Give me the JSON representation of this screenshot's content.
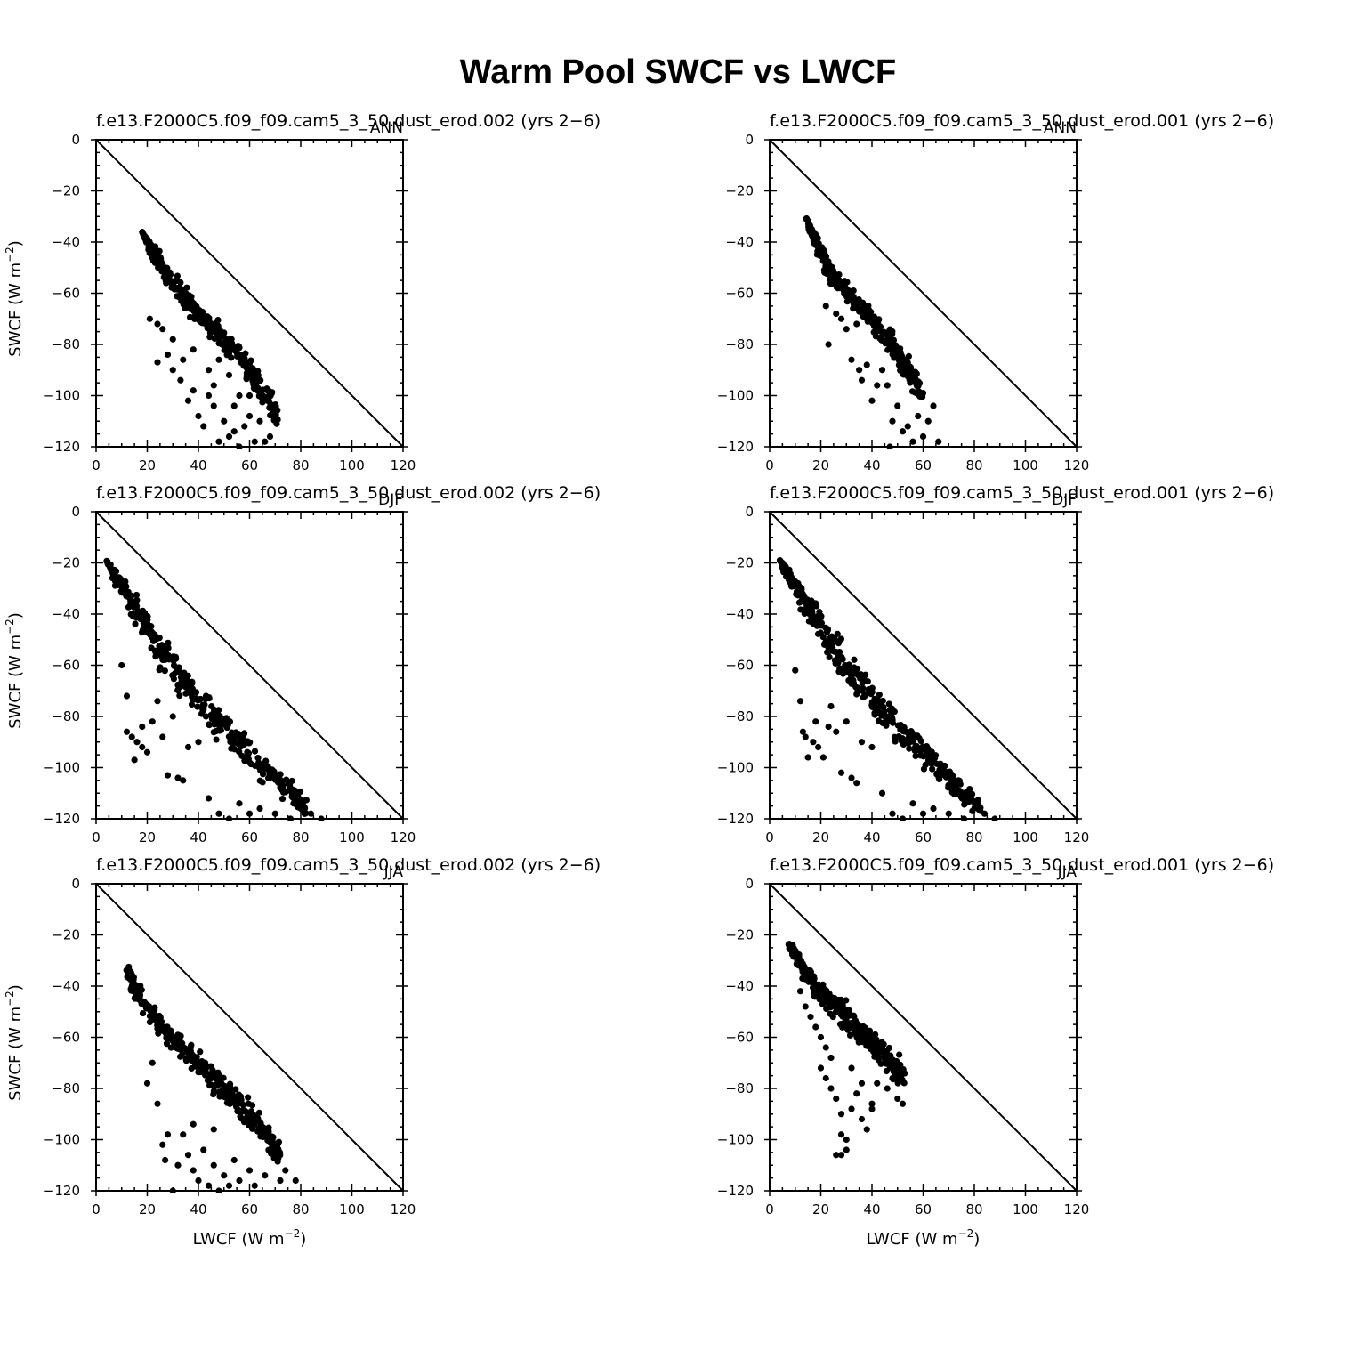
{
  "title": "Warm Pool SWCF vs LWCF",
  "axis_labels": {
    "x_base": "LWCF  (W m",
    "y_base": "SWCF  (W m",
    "exponent": "−2",
    "close": ")"
  },
  "colors": {
    "marker": "#000000",
    "axis": "#000000",
    "background": "#ffffff"
  },
  "chart_data": [
    {
      "type": "scatter",
      "season": "ANN",
      "title": "f.e13.F2000C5.f09_f09.cam5_3_50.dust_erod.002  (yrs 2−6)",
      "xlabel": "LWCF (W m−2)",
      "ylabel": "SWCF (W m−2)",
      "xlim": [
        0,
        120
      ],
      "ylim": [
        -120,
        0
      ],
      "xticks": [
        "0",
        "20",
        "40",
        "60",
        "80",
        "100",
        "120"
      ],
      "yticks": [
        "0",
        "−20",
        "−40",
        "−60",
        "−80",
        "−100",
        "−120"
      ],
      "reference_line": "SWCF = −LWCF",
      "cloud": [
        [
          18,
          -36,
          0
        ],
        [
          22,
          -44,
          3
        ],
        [
          28,
          -53,
          4
        ],
        [
          35,
          -62,
          4
        ],
        [
          42,
          -70,
          4
        ],
        [
          50,
          -78,
          5
        ],
        [
          58,
          -87,
          5
        ],
        [
          64,
          -96,
          5
        ],
        [
          70,
          -108,
          5
        ]
      ],
      "scatter": [
        [
          21,
          -70
        ],
        [
          26,
          -74
        ],
        [
          24,
          -87
        ],
        [
          30,
          -78
        ],
        [
          33,
          -94
        ],
        [
          36,
          -102
        ],
        [
          38,
          -98
        ],
        [
          40,
          -108
        ],
        [
          42,
          -112
        ],
        [
          44,
          -100
        ],
        [
          46,
          -104
        ],
        [
          48,
          -118
        ],
        [
          50,
          -110
        ],
        [
          52,
          -116
        ],
        [
          54,
          -114
        ],
        [
          56,
          -120
        ],
        [
          58,
          -112
        ],
        [
          60,
          -108
        ],
        [
          62,
          -118
        ],
        [
          66,
          -118
        ],
        [
          38,
          -82
        ],
        [
          44,
          -90
        ],
        [
          46,
          -96
        ],
        [
          52,
          -92
        ],
        [
          56,
          -100
        ],
        [
          34,
          -86
        ],
        [
          28,
          -84
        ],
        [
          48,
          -86
        ],
        [
          54,
          -104
        ],
        [
          60,
          -100
        ],
        [
          64,
          -110
        ],
        [
          68,
          -116
        ],
        [
          24,
          -72
        ],
        [
          30,
          -90
        ]
      ]
    },
    {
      "type": "scatter",
      "season": "ANN",
      "title": "f.e13.F2000C5.f09_f09.cam5_3_50.dust_erod.001  (yrs 2−6)",
      "xlabel": "LWCF (W m−2)",
      "ylabel": "SWCF (W m−2)",
      "xlim": [
        0,
        120
      ],
      "ylim": [
        -120,
        0
      ],
      "xticks": [
        "0",
        "20",
        "40",
        "60",
        "80",
        "100",
        "120"
      ],
      "yticks": [
        "0",
        "−20",
        "−40",
        "−60",
        "−80",
        "−100",
        "−120"
      ],
      "reference_line": "SWCF = −LWCF",
      "cloud": [
        [
          14,
          -30,
          0
        ],
        [
          18,
          -40,
          3
        ],
        [
          24,
          -52,
          4
        ],
        [
          32,
          -62,
          4
        ],
        [
          40,
          -70,
          4
        ],
        [
          48,
          -80,
          4
        ],
        [
          54,
          -90,
          4
        ],
        [
          60,
          -100,
          4
        ]
      ],
      "scatter": [
        [
          22,
          -65
        ],
        [
          26,
          -68
        ],
        [
          23,
          -80
        ],
        [
          30,
          -74
        ],
        [
          32,
          -86
        ],
        [
          35,
          -90
        ],
        [
          36,
          -94
        ],
        [
          38,
          -88
        ],
        [
          40,
          -102
        ],
        [
          44,
          -90
        ],
        [
          46,
          -96
        ],
        [
          48,
          -110
        ],
        [
          50,
          -104
        ],
        [
          52,
          -114
        ],
        [
          54,
          -112
        ],
        [
          56,
          -118
        ],
        [
          58,
          -108
        ],
        [
          60,
          -116
        ],
        [
          62,
          -110
        ],
        [
          66,
          -118
        ],
        [
          64,
          -104
        ],
        [
          34,
          -72
        ],
        [
          28,
          -70
        ],
        [
          42,
          -96
        ],
        [
          47,
          -120
        ]
      ]
    },
    {
      "type": "scatter",
      "season": "DJF",
      "title": "f.e13.F2000C5.f09_f09.cam5_3_50.dust_erod.002  (yrs 2−6)",
      "xlabel": "LWCF (W m−2)",
      "ylabel": "SWCF (W m−2)",
      "xlim": [
        0,
        120
      ],
      "ylim": [
        -120,
        0
      ],
      "xticks": [
        "0",
        "20",
        "40",
        "60",
        "80",
        "100",
        "120"
      ],
      "yticks": [
        "0",
        "−20",
        "−40",
        "−60",
        "−80",
        "−100",
        "−120"
      ],
      "reference_line": "SWCF = −LWCF",
      "cloud": [
        [
          4,
          -19,
          0
        ],
        [
          8,
          -26,
          3
        ],
        [
          16,
          -38,
          6
        ],
        [
          24,
          -52,
          7
        ],
        [
          34,
          -66,
          6
        ],
        [
          44,
          -78,
          6
        ],
        [
          54,
          -88,
          6
        ],
        [
          64,
          -98,
          5
        ],
        [
          74,
          -108,
          5
        ],
        [
          82,
          -116,
          4
        ]
      ],
      "scatter": [
        [
          10,
          -60
        ],
        [
          12,
          -72
        ],
        [
          14,
          -88
        ],
        [
          15,
          -97
        ],
        [
          16,
          -90
        ],
        [
          18,
          -92
        ],
        [
          20,
          -94
        ],
        [
          22,
          -82
        ],
        [
          26,
          -88
        ],
        [
          28,
          -103
        ],
        [
          32,
          -104
        ],
        [
          34,
          -105
        ],
        [
          30,
          -80
        ],
        [
          36,
          -92
        ],
        [
          40,
          -90
        ],
        [
          44,
          -112
        ],
        [
          48,
          -118
        ],
        [
          52,
          -120
        ],
        [
          56,
          -114
        ],
        [
          60,
          -118
        ],
        [
          64,
          -116
        ],
        [
          70,
          -118
        ],
        [
          76,
          -120
        ],
        [
          84,
          -118
        ],
        [
          88,
          -120
        ],
        [
          12,
          -86
        ],
        [
          18,
          -84
        ],
        [
          24,
          -74
        ]
      ]
    },
    {
      "type": "scatter",
      "season": "DJF",
      "title": "f.e13.F2000C5.f09_f09.cam5_3_50.dust_erod.001  (yrs 2−6)",
      "xlabel": "LWCF (W m−2)",
      "ylabel": "SWCF (W m−2)",
      "xlim": [
        0,
        120
      ],
      "ylim": [
        -120,
        0
      ],
      "xticks": [
        "0",
        "20",
        "40",
        "60",
        "80",
        "100",
        "120"
      ],
      "yticks": [
        "0",
        "−20",
        "−40",
        "−60",
        "−80",
        "−100",
        "−120"
      ],
      "reference_line": "SWCF = −LWCF",
      "cloud": [
        [
          4,
          -19,
          0
        ],
        [
          8,
          -26,
          3
        ],
        [
          16,
          -38,
          6
        ],
        [
          24,
          -52,
          7
        ],
        [
          34,
          -66,
          6
        ],
        [
          44,
          -78,
          6
        ],
        [
          54,
          -88,
          6
        ],
        [
          64,
          -98,
          5
        ],
        [
          74,
          -108,
          5
        ],
        [
          82,
          -116,
          4
        ]
      ],
      "scatter": [
        [
          10,
          -62
        ],
        [
          12,
          -74
        ],
        [
          14,
          -88
        ],
        [
          15,
          -96
        ],
        [
          17,
          -90
        ],
        [
          19,
          -92
        ],
        [
          21,
          -96
        ],
        [
          23,
          -84
        ],
        [
          26,
          -86
        ],
        [
          28,
          -102
        ],
        [
          32,
          -104
        ],
        [
          34,
          -106
        ],
        [
          30,
          -82
        ],
        [
          36,
          -90
        ],
        [
          40,
          -92
        ],
        [
          44,
          -110
        ],
        [
          48,
          -118
        ],
        [
          52,
          -120
        ],
        [
          56,
          -114
        ],
        [
          60,
          -118
        ],
        [
          64,
          -116
        ],
        [
          70,
          -118
        ],
        [
          76,
          -120
        ],
        [
          84,
          -118
        ],
        [
          88,
          -120
        ],
        [
          13,
          -86
        ],
        [
          18,
          -82
        ],
        [
          24,
          -76
        ]
      ]
    },
    {
      "type": "scatter",
      "season": "JJA",
      "title": "f.e13.F2000C5.f09_f09.cam5_3_50.dust_erod.002  (yrs 2−6)",
      "xlabel": "LWCF (W m−2)",
      "ylabel": "SWCF (W m−2)",
      "xlim": [
        0,
        120
      ],
      "ylim": [
        -120,
        0
      ],
      "xticks": [
        "0",
        "20",
        "40",
        "60",
        "80",
        "100",
        "120"
      ],
      "yticks": [
        "0",
        "−20",
        "−40",
        "−60",
        "−80",
        "−100",
        "−120"
      ],
      "reference_line": "SWCF = −LWCF",
      "cloud": [
        [
          12,
          -34,
          3
        ],
        [
          18,
          -46,
          4
        ],
        [
          26,
          -56,
          4
        ],
        [
          34,
          -64,
          5
        ],
        [
          42,
          -72,
          5
        ],
        [
          50,
          -80,
          5
        ],
        [
          58,
          -88,
          5
        ],
        [
          66,
          -98,
          4
        ],
        [
          72,
          -106,
          4
        ]
      ],
      "scatter": [
        [
          20,
          -78
        ],
        [
          24,
          -86
        ],
        [
          26,
          -102
        ],
        [
          27,
          -108
        ],
        [
          28,
          -98
        ],
        [
          30,
          -120
        ],
        [
          32,
          -110
        ],
        [
          34,
          -98
        ],
        [
          36,
          -106
        ],
        [
          38,
          -112
        ],
        [
          40,
          -116
        ],
        [
          42,
          -104
        ],
        [
          44,
          -118
        ],
        [
          46,
          -110
        ],
        [
          48,
          -120
        ],
        [
          50,
          -114
        ],
        [
          52,
          -118
        ],
        [
          54,
          -108
        ],
        [
          56,
          -116
        ],
        [
          60,
          -112
        ],
        [
          62,
          -118
        ],
        [
          66,
          -114
        ],
        [
          70,
          -106
        ],
        [
          72,
          -116
        ],
        [
          74,
          -112
        ],
        [
          78,
          -116
        ],
        [
          22,
          -70
        ],
        [
          38,
          -94
        ],
        [
          46,
          -96
        ]
      ]
    },
    {
      "type": "scatter",
      "season": "JJA",
      "title": "f.e13.F2000C5.f09_f09.cam5_3_50.dust_erod.001  (yrs 2−6)",
      "xlabel": "LWCF (W m−2)",
      "ylabel": "SWCF (W m−2)",
      "xlim": [
        0,
        120
      ],
      "ylim": [
        -120,
        0
      ],
      "xticks": [
        "0",
        "20",
        "40",
        "60",
        "80",
        "100",
        "120"
      ],
      "yticks": [
        "0",
        "−20",
        "−40",
        "−60",
        "−80",
        "−100",
        "−120"
      ],
      "reference_line": "SWCF = −LWCF",
      "cloud": [
        [
          8,
          -24,
          2
        ],
        [
          12,
          -32,
          3
        ],
        [
          18,
          -40,
          4
        ],
        [
          24,
          -46,
          5
        ],
        [
          30,
          -52,
          5
        ],
        [
          36,
          -58,
          5
        ],
        [
          42,
          -64,
          5
        ],
        [
          48,
          -70,
          5
        ],
        [
          52,
          -76,
          4
        ]
      ],
      "scatter": [
        [
          12,
          -42
        ],
        [
          14,
          -48
        ],
        [
          16,
          -52
        ],
        [
          18,
          -56
        ],
        [
          20,
          -60
        ],
        [
          22,
          -64
        ],
        [
          24,
          -68
        ],
        [
          22,
          -76
        ],
        [
          24,
          -80
        ],
        [
          26,
          -84
        ],
        [
          28,
          -90
        ],
        [
          28,
          -98
        ],
        [
          30,
          -100
        ],
        [
          26,
          -106
        ],
        [
          28,
          -106
        ],
        [
          30,
          -104
        ],
        [
          32,
          -88
        ],
        [
          34,
          -82
        ],
        [
          36,
          -92
        ],
        [
          38,
          -96
        ],
        [
          40,
          -86
        ],
        [
          36,
          -78
        ],
        [
          42,
          -78
        ],
        [
          46,
          -80
        ],
        [
          48,
          -76
        ],
        [
          50,
          -84
        ],
        [
          52,
          -86
        ],
        [
          32,
          -72
        ],
        [
          40,
          -88
        ],
        [
          20,
          -72
        ]
      ]
    }
  ]
}
